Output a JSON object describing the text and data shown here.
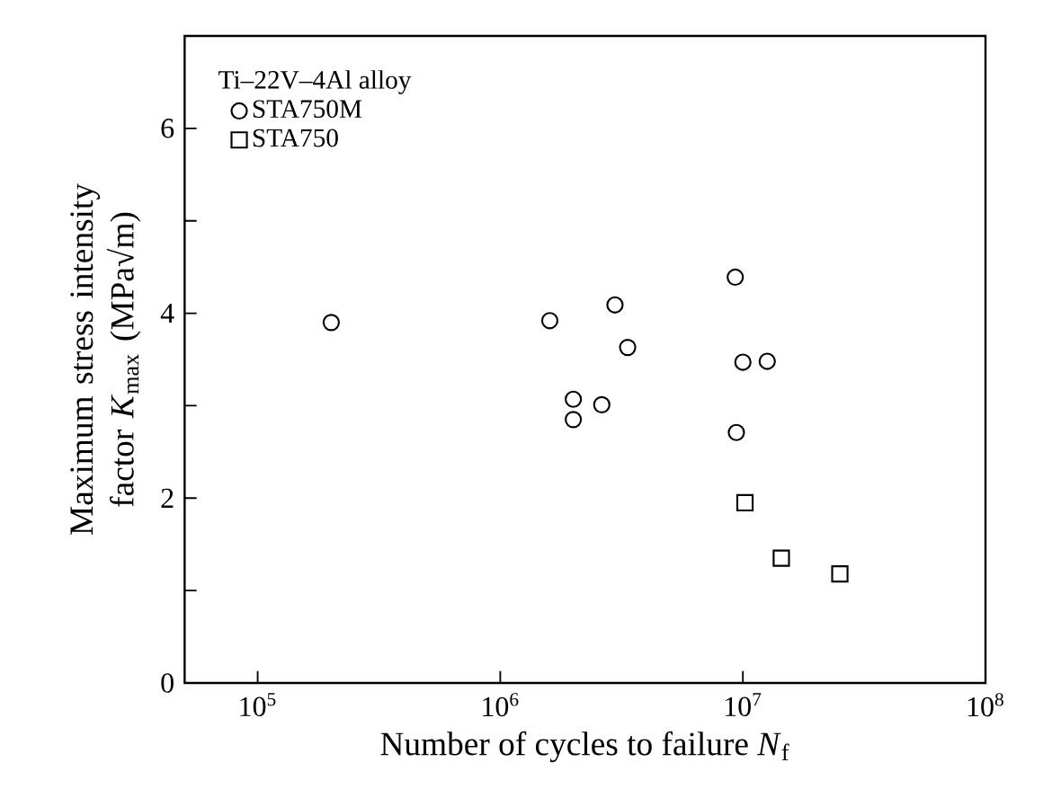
{
  "chart_data": {
    "type": "scatter",
    "legend_title": "Ti–22V–4Al alloy",
    "xlabel": "Number of cycles to failure  *N*$_{f}$",
    "ylabel": "Maximum stress intensity factor *K*$_{max}$  (MPa√m)",
    "log": "x",
    "xlim": [
      50000,
      100000000
    ],
    "xticks": [
      {
        "value": 100000,
        "label": "10$^{5}$"
      },
      {
        "value": 1000000,
        "label": "10$^{6}$"
      },
      {
        "value": 10000000,
        "label": "10$^{7}$"
      },
      {
        "value": 100000000,
        "label": "10$^{8}$"
      }
    ],
    "ylim": [
      0,
      7
    ],
    "yticks": [
      0,
      {
        "value": 1,
        "label": null
      },
      2,
      {
        "value": 3,
        "label": null
      },
      4,
      {
        "value": 5,
        "label": null
      },
      6
    ],
    "legend": "top left",
    "grid": false,
    "series": [
      {
        "name": "STA750M",
        "color": "#000000",
        "marker": "circle",
        "x": [
          201000,
          1600000,
          2970000,
          3350000,
          2000000,
          2000000,
          2620000,
          9300000,
          10000000,
          12600000,
          9400000
        ],
        "values": [
          3.9,
          3.92,
          4.09,
          3.63,
          3.07,
          2.85,
          3.01,
          4.39,
          3.47,
          3.48,
          2.71
        ]
      },
      {
        "name": "STA750",
        "color": "#000000",
        "marker": "square",
        "x": [
          10200000,
          14400000,
          25100000
        ],
        "values": [
          1.95,
          1.35,
          1.18
        ]
      }
    ]
  }
}
